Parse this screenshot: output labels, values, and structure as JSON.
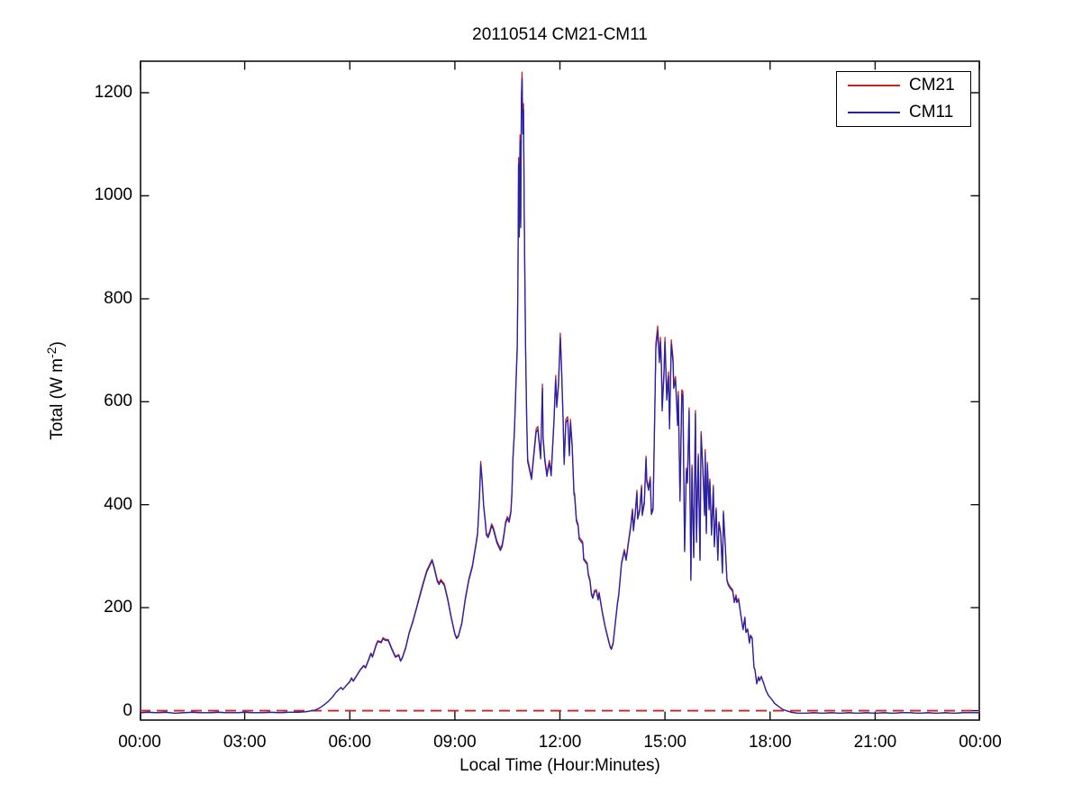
{
  "figure": {
    "title": "20110514 CM21-CM11",
    "xlabel": "Local Time (Hour:Minutes)",
    "ylabel_pre": "Total (W m",
    "ylabel_sup": "-2",
    "ylabel_post": ")"
  },
  "legend": {
    "items": [
      {
        "label": "CM21",
        "color": "#cc2222"
      },
      {
        "label": "CM11",
        "color": "#2323ad"
      }
    ]
  },
  "chart_data": {
    "type": "line",
    "title": "20110514 CM21-CM11",
    "xlabel": "Local Time (Hour:Minutes)",
    "ylabel": "Total (W m^-2)",
    "legend_position": "top-right",
    "grid": false,
    "xlim_hours": [
      0,
      24
    ],
    "ylim": [
      -20,
      1263
    ],
    "xtick_hours": [
      0,
      3,
      6,
      9,
      12,
      15,
      18,
      21,
      24
    ],
    "xtick_labels": [
      "00:00",
      "03:00",
      "06:00",
      "09:00",
      "12:00",
      "15:00",
      "18:00",
      "21:00",
      "00:00"
    ],
    "ytick_values": [
      0,
      200,
      400,
      600,
      800,
      1000,
      1200
    ],
    "ytick_labels": [
      "0",
      "200",
      "400",
      "600",
      "800",
      "1000",
      "1200"
    ],
    "zero_line": {
      "y": 0,
      "style": "dashed",
      "color": "#cc2222"
    },
    "series": [
      {
        "name": "CM21",
        "color": "#cc2222",
        "style": "solid",
        "point_index": 1
      },
      {
        "name": "CM11",
        "color": "#2323ad",
        "style": "solid",
        "point_index": 2
      }
    ],
    "points_format": [
      "hour",
      "CM21_W_m2",
      "CM11_W_m2"
    ],
    "points": [
      [
        0.0,
        -4,
        -4
      ],
      [
        0.25,
        -3,
        -3
      ],
      [
        0.5,
        -4,
        -4
      ],
      [
        0.75,
        -3,
        -3
      ],
      [
        1.0,
        -5,
        -5
      ],
      [
        1.25,
        -4,
        -4
      ],
      [
        1.5,
        -3,
        -3
      ],
      [
        1.75,
        -4,
        -4
      ],
      [
        2.0,
        -4,
        -4
      ],
      [
        2.25,
        -3,
        -3
      ],
      [
        2.5,
        -4,
        -4
      ],
      [
        2.75,
        -4,
        -4
      ],
      [
        3.0,
        -3,
        -3
      ],
      [
        3.25,
        -4,
        -4
      ],
      [
        3.5,
        -4,
        -4
      ],
      [
        3.75,
        -3,
        -3
      ],
      [
        4.0,
        -4,
        -4
      ],
      [
        4.25,
        -3,
        -3
      ],
      [
        4.5,
        -3,
        -3
      ],
      [
        4.75,
        -2,
        -2
      ],
      [
        5.0,
        1,
        1
      ],
      [
        5.1,
        4,
        4
      ],
      [
        5.2,
        8,
        8
      ],
      [
        5.3,
        13,
        13
      ],
      [
        5.4,
        19,
        19
      ],
      [
        5.5,
        26,
        26
      ],
      [
        5.6,
        35,
        35
      ],
      [
        5.7,
        42,
        42
      ],
      [
        5.75,
        45,
        45
      ],
      [
        5.8,
        41,
        41
      ],
      [
        5.9,
        49,
        49
      ],
      [
        6.0,
        57,
        56
      ],
      [
        6.05,
        64,
        63
      ],
      [
        6.1,
        58,
        57
      ],
      [
        6.2,
        69,
        68
      ],
      [
        6.3,
        80,
        79
      ],
      [
        6.4,
        88,
        87
      ],
      [
        6.45,
        84,
        83
      ],
      [
        6.55,
        102,
        100
      ],
      [
        6.6,
        112,
        110
      ],
      [
        6.65,
        106,
        104
      ],
      [
        6.75,
        128,
        126
      ],
      [
        6.8,
        136,
        134
      ],
      [
        6.9,
        134,
        132
      ],
      [
        6.95,
        142,
        140
      ],
      [
        7.0,
        139,
        137
      ],
      [
        7.1,
        138,
        136
      ],
      [
        7.2,
        121,
        119
      ],
      [
        7.3,
        106,
        104
      ],
      [
        7.4,
        109,
        107
      ],
      [
        7.45,
        97,
        96
      ],
      [
        7.5,
        104,
        102
      ],
      [
        7.6,
        124,
        122
      ],
      [
        7.7,
        153,
        151
      ],
      [
        7.8,
        174,
        172
      ],
      [
        7.9,
        199,
        197
      ],
      [
        8.0,
        225,
        222
      ],
      [
        8.1,
        250,
        247
      ],
      [
        8.2,
        273,
        270
      ],
      [
        8.3,
        287,
        284
      ],
      [
        8.35,
        294,
        291
      ],
      [
        8.4,
        282,
        279
      ],
      [
        8.5,
        254,
        251
      ],
      [
        8.55,
        248,
        245
      ],
      [
        8.6,
        255,
        252
      ],
      [
        8.7,
        246,
        243
      ],
      [
        8.8,
        217,
        214
      ],
      [
        8.9,
        181,
        179
      ],
      [
        9.0,
        150,
        148
      ],
      [
        9.05,
        142,
        140
      ],
      [
        9.1,
        146,
        144
      ],
      [
        9.2,
        171,
        169
      ],
      [
        9.3,
        219,
        216
      ],
      [
        9.4,
        256,
        253
      ],
      [
        9.5,
        282,
        279
      ],
      [
        9.6,
        324,
        320
      ],
      [
        9.65,
        346,
        342
      ],
      [
        9.7,
        413,
        408
      ],
      [
        9.74,
        484,
        478
      ],
      [
        9.78,
        449,
        444
      ],
      [
        9.82,
        401,
        397
      ],
      [
        9.86,
        376,
        372
      ],
      [
        9.9,
        345,
        341
      ],
      [
        9.95,
        340,
        336
      ],
      [
        10.0,
        350,
        346
      ],
      [
        10.05,
        363,
        359
      ],
      [
        10.1,
        356,
        352
      ],
      [
        10.2,
        330,
        326
      ],
      [
        10.3,
        315,
        311
      ],
      [
        10.35,
        323,
        319
      ],
      [
        10.4,
        343,
        339
      ],
      [
        10.45,
        367,
        363
      ],
      [
        10.5,
        377,
        373
      ],
      [
        10.55,
        370,
        366
      ],
      [
        10.6,
        389,
        385
      ],
      [
        10.63,
        425,
        420
      ],
      [
        10.66,
        494,
        489
      ],
      [
        10.7,
        546,
        540
      ],
      [
        10.74,
        628,
        620
      ],
      [
        10.78,
        709,
        700
      ],
      [
        10.8,
        843,
        833
      ],
      [
        10.82,
        1074,
        1062
      ],
      [
        10.84,
        930,
        920
      ],
      [
        10.86,
        1118,
        1106
      ],
      [
        10.88,
        948,
        938
      ],
      [
        10.9,
        1192,
        1180
      ],
      [
        10.92,
        1240,
        1228
      ],
      [
        10.94,
        1132,
        1120
      ],
      [
        10.96,
        1179,
        1167
      ],
      [
        10.98,
        990,
        980
      ],
      [
        11.0,
        843,
        833
      ],
      [
        11.02,
        709,
        700
      ],
      [
        11.05,
        571,
        565
      ],
      [
        11.08,
        489,
        484
      ],
      [
        11.19,
        454,
        449
      ],
      [
        11.32,
        547,
        541
      ],
      [
        11.37,
        552,
        546
      ],
      [
        11.45,
        494,
        489
      ],
      [
        11.5,
        634,
        626
      ],
      [
        11.52,
        534,
        528
      ],
      [
        11.57,
        489,
        484
      ],
      [
        11.63,
        460,
        455
      ],
      [
        11.65,
        469,
        464
      ],
      [
        11.7,
        486,
        481
      ],
      [
        11.75,
        461,
        456
      ],
      [
        11.83,
        566,
        560
      ],
      [
        11.88,
        651,
        643
      ],
      [
        11.91,
        595,
        589
      ],
      [
        11.96,
        638,
        630
      ],
      [
        12.01,
        733,
        724
      ],
      [
        12.04,
        680,
        672
      ],
      [
        12.09,
        571,
        565
      ],
      [
        12.12,
        483,
        478
      ],
      [
        12.17,
        566,
        560
      ],
      [
        12.22,
        571,
        565
      ],
      [
        12.27,
        500,
        495
      ],
      [
        12.3,
        566,
        560
      ],
      [
        12.35,
        517,
        511
      ],
      [
        12.4,
        425,
        420
      ],
      [
        12.42,
        422,
        417
      ],
      [
        12.47,
        372,
        368
      ],
      [
        12.52,
        362,
        358
      ],
      [
        12.55,
        337,
        333
      ],
      [
        12.65,
        328,
        324
      ],
      [
        12.68,
        296,
        293
      ],
      [
        12.78,
        287,
        284
      ],
      [
        12.81,
        266,
        263
      ],
      [
        12.86,
        254,
        251
      ],
      [
        12.9,
        228,
        225
      ],
      [
        12.94,
        221,
        218
      ],
      [
        12.99,
        234,
        231
      ],
      [
        13.04,
        235,
        232
      ],
      [
        13.09,
        218,
        215
      ],
      [
        13.12,
        230,
        227
      ],
      [
        13.22,
        189,
        187
      ],
      [
        13.3,
        162,
        160
      ],
      [
        13.37,
        142,
        140
      ],
      [
        13.43,
        126,
        124
      ],
      [
        13.47,
        121,
        119
      ],
      [
        13.52,
        132,
        130
      ],
      [
        13.58,
        170,
        168
      ],
      [
        13.64,
        209,
        206
      ],
      [
        13.68,
        227,
        224
      ],
      [
        13.76,
        288,
        285
      ],
      [
        13.84,
        313,
        309
      ],
      [
        13.89,
        295,
        292
      ],
      [
        13.97,
        336,
        332
      ],
      [
        14.02,
        359,
        355
      ],
      [
        14.07,
        392,
        388
      ],
      [
        14.1,
        353,
        349
      ],
      [
        14.15,
        385,
        381
      ],
      [
        14.2,
        428,
        423
      ],
      [
        14.22,
        376,
        372
      ],
      [
        14.28,
        392,
        388
      ],
      [
        14.33,
        438,
        433
      ],
      [
        14.35,
        383,
        379
      ],
      [
        14.41,
        407,
        402
      ],
      [
        14.46,
        494,
        489
      ],
      [
        14.48,
        450,
        445
      ],
      [
        14.53,
        433,
        428
      ],
      [
        14.58,
        454,
        449
      ],
      [
        14.61,
        385,
        381
      ],
      [
        14.66,
        394,
        390
      ],
      [
        14.71,
        594,
        588
      ],
      [
        14.74,
        713,
        704
      ],
      [
        14.79,
        747,
        737
      ],
      [
        14.84,
        684,
        676
      ],
      [
        14.87,
        725,
        716
      ],
      [
        14.9,
        672,
        664
      ],
      [
        14.92,
        588,
        582
      ],
      [
        14.97,
        660,
        652
      ],
      [
        15.0,
        725,
        716
      ],
      [
        15.05,
        611,
        603
      ],
      [
        15.1,
        658,
        650
      ],
      [
        15.13,
        553,
        547
      ],
      [
        15.18,
        720,
        711
      ],
      [
        15.23,
        684,
        676
      ],
      [
        15.25,
        634,
        626
      ],
      [
        15.3,
        649,
        641
      ],
      [
        15.36,
        560,
        554
      ],
      [
        15.38,
        620,
        612
      ],
      [
        15.43,
        412,
        407
      ],
      [
        15.48,
        623,
        615
      ],
      [
        15.51,
        620,
        612
      ],
      [
        15.56,
        313,
        309
      ],
      [
        15.61,
        471,
        466
      ],
      [
        15.64,
        447,
        442
      ],
      [
        15.69,
        588,
        582
      ],
      [
        15.74,
        256,
        253
      ],
      [
        15.77,
        477,
        472
      ],
      [
        15.82,
        300,
        297
      ],
      [
        15.87,
        583,
        577
      ],
      [
        15.9,
        331,
        327
      ],
      [
        15.95,
        499,
        494
      ],
      [
        16.0,
        295,
        292
      ],
      [
        16.03,
        542,
        536
      ],
      [
        16.08,
        475,
        470
      ],
      [
        16.13,
        383,
        379
      ],
      [
        16.15,
        507,
        501
      ],
      [
        16.18,
        348,
        344
      ],
      [
        16.21,
        482,
        477
      ],
      [
        16.26,
        394,
        390
      ],
      [
        16.28,
        450,
        445
      ],
      [
        16.33,
        345,
        341
      ],
      [
        16.38,
        438,
        433
      ],
      [
        16.41,
        322,
        318
      ],
      [
        16.46,
        394,
        390
      ],
      [
        16.51,
        295,
        292
      ],
      [
        16.54,
        367,
        363
      ],
      [
        16.59,
        348,
        344
      ],
      [
        16.64,
        270,
        267
      ],
      [
        16.67,
        388,
        384
      ],
      [
        16.72,
        324,
        320
      ],
      [
        16.77,
        256,
        253
      ],
      [
        16.8,
        248,
        245
      ],
      [
        16.85,
        242,
        239
      ],
      [
        16.93,
        235,
        232
      ],
      [
        16.98,
        213,
        210
      ],
      [
        17.03,
        225,
        222
      ],
      [
        17.05,
        213,
        210
      ],
      [
        17.1,
        218,
        215
      ],
      [
        17.18,
        180,
        178
      ],
      [
        17.23,
        159,
        157
      ],
      [
        17.28,
        182,
        180
      ],
      [
        17.31,
        154,
        152
      ],
      [
        17.36,
        159,
        157
      ],
      [
        17.41,
        133,
        131
      ],
      [
        17.44,
        147,
        145
      ],
      [
        17.49,
        142,
        140
      ],
      [
        17.54,
        85,
        84
      ],
      [
        17.57,
        80,
        79
      ],
      [
        17.62,
        53,
        52
      ],
      [
        17.67,
        66,
        65
      ],
      [
        17.7,
        59,
        58
      ],
      [
        17.75,
        67,
        66
      ],
      [
        17.82,
        53,
        52
      ],
      [
        17.88,
        40,
        40
      ],
      [
        17.95,
        30,
        30
      ],
      [
        18.06,
        21,
        21
      ],
      [
        18.13,
        14,
        14
      ],
      [
        18.21,
        10,
        10
      ],
      [
        18.34,
        3,
        3
      ],
      [
        18.47,
        0,
        0
      ],
      [
        18.6,
        -3,
        -3
      ],
      [
        18.8,
        -5,
        -5
      ],
      [
        19.0,
        -5,
        -5
      ],
      [
        19.25,
        -4,
        -4
      ],
      [
        19.5,
        -5,
        -5
      ],
      [
        19.75,
        -4,
        -4
      ],
      [
        20.0,
        -5,
        -5
      ],
      [
        20.25,
        -4,
        -4
      ],
      [
        20.5,
        -5,
        -5
      ],
      [
        20.75,
        -4,
        -4
      ],
      [
        21.0,
        -5,
        -5
      ],
      [
        21.25,
        -4,
        -4
      ],
      [
        21.5,
        -5,
        -5
      ],
      [
        21.75,
        -4,
        -4
      ],
      [
        22.0,
        -4,
        -4
      ],
      [
        22.25,
        -5,
        -5
      ],
      [
        22.5,
        -4,
        -4
      ],
      [
        22.75,
        -5,
        -5
      ],
      [
        23.0,
        -4,
        -4
      ],
      [
        23.25,
        -5,
        -5
      ],
      [
        23.5,
        -4,
        -4
      ],
      [
        23.75,
        -4,
        -4
      ],
      [
        24.0,
        -4,
        -4
      ]
    ]
  }
}
